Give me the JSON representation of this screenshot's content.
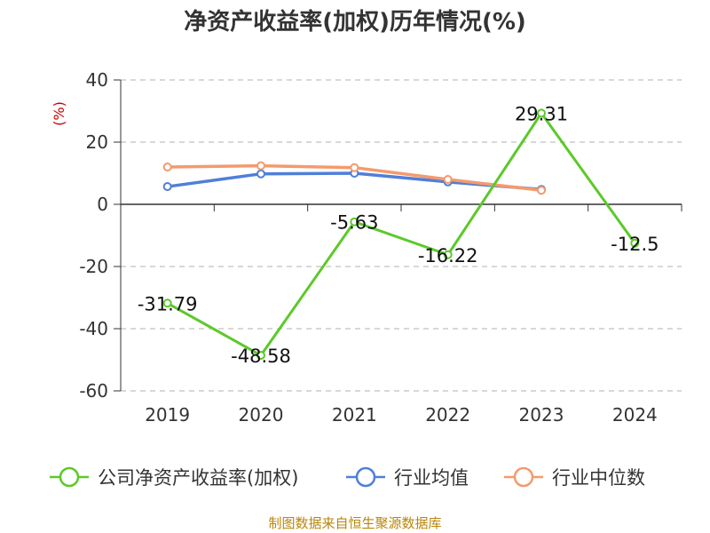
{
  "title": "净资产收益率(加权)历年情况(%)",
  "source": "制图数据来自恒生聚源数据库",
  "chart_data": {
    "type": "line",
    "title": "净资产收益率(加权)历年情况(%)",
    "ylabel": "(%)",
    "xlabel": "",
    "categories": [
      "2019",
      "2020",
      "2021",
      "2022",
      "2023",
      "2024"
    ],
    "ylim": [
      -60,
      40
    ],
    "yticks": [
      "40",
      "20",
      "0",
      "-20",
      "-40",
      "-60"
    ],
    "grid": true,
    "legend_position": "bottom",
    "series": [
      {
        "name": "公司净资产收益率(加权)",
        "color": "#5cc92a",
        "values": [
          -31.79,
          -48.58,
          -5.63,
          -16.22,
          29.31,
          -12.5
        ],
        "labels": [
          "-31.79",
          "-48.58",
          "-5.63",
          "-16.22",
          "29.31",
          "-12.5"
        ]
      },
      {
        "name": "行业均值",
        "color": "#4f7fd9",
        "values": [
          5.7,
          9.8,
          10.0,
          7.2,
          4.8,
          null
        ]
      },
      {
        "name": "行业中位数",
        "color": "#f49a6d",
        "values": [
          12.0,
          12.4,
          11.8,
          8.0,
          4.5,
          null
        ]
      }
    ]
  }
}
